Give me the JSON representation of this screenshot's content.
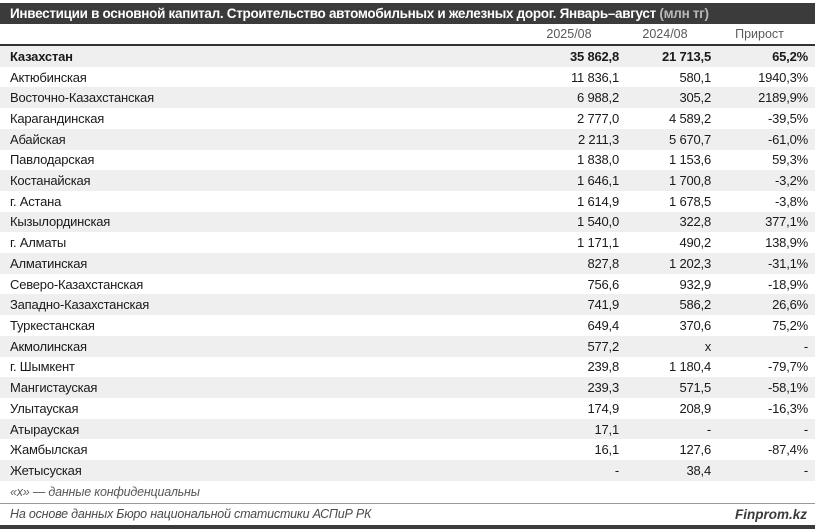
{
  "title": {
    "main": "Инвестиции в основной капитал. Строительство автомобильных и железных дорог. Январь–август ",
    "unit": "(млн тг)"
  },
  "chart_data": {
    "type": "table",
    "title": "Инвестиции в основной капитал. Строительство автомобильных и железных дорог. Январь–август (млн тг)",
    "columns": [
      "2025/08",
      "2024/08",
      "Прирост"
    ],
    "rows": [
      {
        "region": "Казахстан",
        "v2025": "35 862,8",
        "v2024": "21 713,5",
        "growth": "65,2%",
        "bold": true
      },
      {
        "region": "Актюбинская",
        "v2025": "11 836,1",
        "v2024": "580,1",
        "growth": "1940,3%"
      },
      {
        "region": "Восточно-Казахстанская",
        "v2025": "6 988,2",
        "v2024": "305,2",
        "growth": "2189,9%"
      },
      {
        "region": "Карагандинская",
        "v2025": "2 777,0",
        "v2024": "4 589,2",
        "growth": "-39,5%"
      },
      {
        "region": "Абайская",
        "v2025": "2 211,3",
        "v2024": "5 670,7",
        "growth": "-61,0%"
      },
      {
        "region": "Павлодарская",
        "v2025": "1 838,0",
        "v2024": "1 153,6",
        "growth": "59,3%"
      },
      {
        "region": "Костанайская",
        "v2025": "1 646,1",
        "v2024": "1 700,8",
        "growth": "-3,2%"
      },
      {
        "region": "г. Астана",
        "v2025": "1 614,9",
        "v2024": "1 678,5",
        "growth": "-3,8%"
      },
      {
        "region": "Кызылординская",
        "v2025": "1 540,0",
        "v2024": "322,8",
        "growth": "377,1%"
      },
      {
        "region": "г. Алматы",
        "v2025": "1 171,1",
        "v2024": "490,2",
        "growth": "138,9%"
      },
      {
        "region": "Алматинская",
        "v2025": "827,8",
        "v2024": "1 202,3",
        "growth": "-31,1%"
      },
      {
        "region": "Северо-Казахстанская",
        "v2025": "756,6",
        "v2024": "932,9",
        "growth": "-18,9%"
      },
      {
        "region": "Западно-Казахстанская",
        "v2025": "741,9",
        "v2024": "586,2",
        "growth": "26,6%"
      },
      {
        "region": "Туркестанская",
        "v2025": "649,4",
        "v2024": "370,6",
        "growth": "75,2%"
      },
      {
        "region": "Акмолинская",
        "v2025": "577,2",
        "v2024": "x",
        "growth": "-"
      },
      {
        "region": "г. Шымкент",
        "v2025": "239,8",
        "v2024": "1 180,4",
        "growth": "-79,7%"
      },
      {
        "region": "Мангистауская",
        "v2025": "239,3",
        "v2024": "571,5",
        "growth": "-58,1%"
      },
      {
        "region": "Улытауская",
        "v2025": "174,9",
        "v2024": "208,9",
        "growth": "-16,3%"
      },
      {
        "region": "Атырауская",
        "v2025": "17,1",
        "v2024": "-",
        "growth": "-"
      },
      {
        "region": "Жамбылская",
        "v2025": "16,1",
        "v2024": "127,6",
        "growth": "-87,4%"
      },
      {
        "region": "Жетысуская",
        "v2025": "-",
        "v2024": "38,4",
        "growth": "-"
      }
    ]
  },
  "footnote": "«х» — данные конфиденциальны",
  "source": "На основе данных Бюро национальной статистики АСПиР РК",
  "brand": "Finprom.kz",
  "colors": {
    "header_bg": "#3b3b3b",
    "stripe": "#efefef",
    "text": "#1a1a1a",
    "muted": "#595959"
  }
}
